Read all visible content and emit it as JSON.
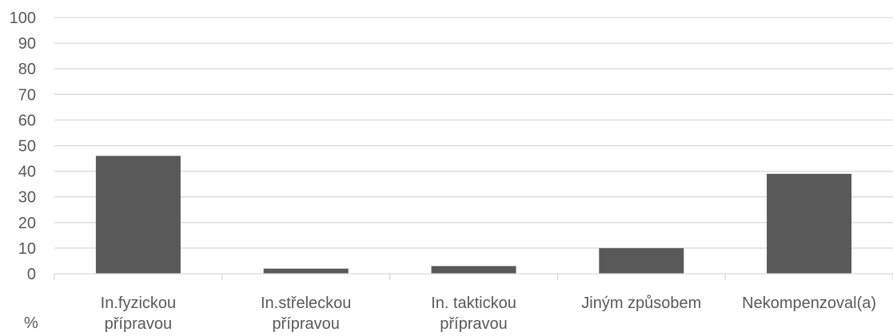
{
  "chart_data": {
    "type": "bar",
    "categories": [
      [
        "In.fyzickou",
        "přípravou"
      ],
      [
        "In.střeleckou",
        "přípravou"
      ],
      [
        "In. taktickou",
        "přípravou"
      ],
      [
        "Jiným způsobem"
      ],
      [
        "Nekompenzoval(a)"
      ]
    ],
    "values": [
      46,
      2,
      3,
      10,
      39
    ],
    "ylim": [
      0,
      100
    ],
    "yticks": [
      0,
      10,
      20,
      30,
      40,
      50,
      60,
      70,
      80,
      90,
      100
    ],
    "ylabel": "%",
    "grid": true,
    "legend": "none",
    "bar_color": "#595959",
    "grid_color": "#d9d9d9",
    "axis_color": "#d9d9d9",
    "text_color": "#595959"
  }
}
